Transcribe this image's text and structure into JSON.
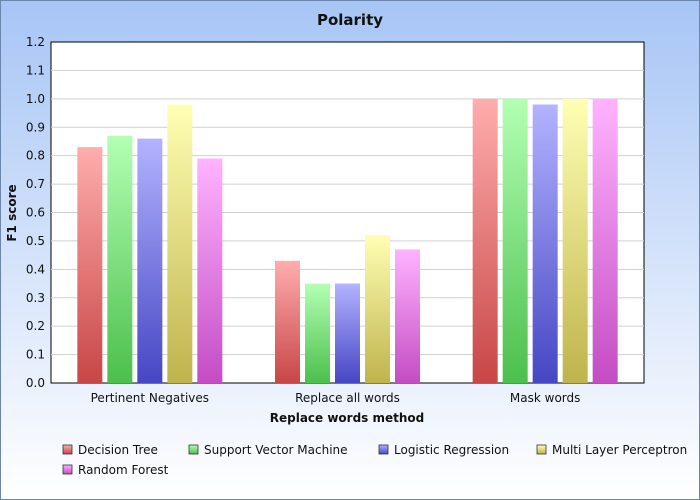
{
  "chart_data": {
    "type": "bar",
    "title": "Polarity",
    "xlabel": "Replace words method",
    "ylabel": "F1 score",
    "categories": [
      "Pertinent Negatives",
      "Replace all words",
      "Mask words"
    ],
    "ylim": [
      0,
      1.2
    ],
    "yticks": [
      "0.0",
      "0.1",
      "0.2",
      "0.3",
      "0.4",
      "0.5",
      "0.6",
      "0.7",
      "0.8",
      "0.9",
      "1.0",
      "1.1",
      "1.2"
    ],
    "grid": true,
    "legend_position": "bottom",
    "series": [
      {
        "name": "Decision Tree",
        "values": [
          0.83,
          0.43,
          1.0
        ],
        "color_top": "#ffadad",
        "color_bottom": "#c84646"
      },
      {
        "name": "Support Vector Machine",
        "values": [
          0.87,
          0.35,
          1.0
        ],
        "color_top": "#b3ffb3",
        "color_bottom": "#4cbf4c"
      },
      {
        "name": "Logistic Regression",
        "values": [
          0.86,
          0.35,
          0.98
        ],
        "color_top": "#b3b3ff",
        "color_bottom": "#4646c4"
      },
      {
        "name": "Multi Layer Perceptron",
        "values": [
          0.98,
          0.52,
          1.0
        ],
        "color_top": "#ffffb3",
        "color_bottom": "#bfb34c"
      },
      {
        "name": "Random Forest",
        "values": [
          0.79,
          0.47,
          1.0
        ],
        "color_top": "#ffb3ff",
        "color_bottom": "#c44cc4"
      }
    ]
  }
}
